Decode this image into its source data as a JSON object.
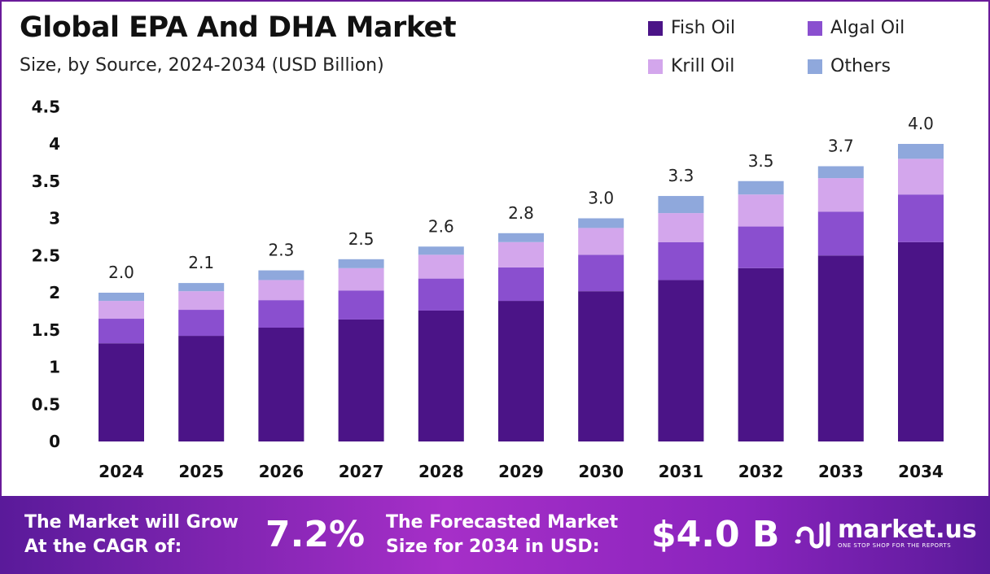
{
  "chart_data": {
    "type": "bar",
    "stacked": true,
    "title": "Global EPA And DHA Market",
    "subtitle": "Size, by Source, 2024-2034 (USD Billion)",
    "categories": [
      "2024",
      "2025",
      "2026",
      "2027",
      "2028",
      "2029",
      "2030",
      "2031",
      "2032",
      "2033",
      "2034"
    ],
    "series": [
      {
        "name": "Fish Oil",
        "color": "#4b1487",
        "values": [
          1.32,
          1.42,
          1.53,
          1.64,
          1.76,
          1.89,
          2.02,
          2.17,
          2.33,
          2.5,
          2.68
        ]
      },
      {
        "name": "Algal Oil",
        "color": "#8a4fcf",
        "values": [
          0.33,
          0.35,
          0.37,
          0.39,
          0.43,
          0.45,
          0.49,
          0.51,
          0.56,
          0.59,
          0.64
        ]
      },
      {
        "name": "Krill Oil",
        "color": "#d3a6ec",
        "values": [
          0.24,
          0.25,
          0.27,
          0.3,
          0.32,
          0.34,
          0.36,
          0.39,
          0.43,
          0.45,
          0.48
        ]
      },
      {
        "name": "Others",
        "color": "#8fa8dc",
        "values": [
          0.11,
          0.11,
          0.13,
          0.12,
          0.11,
          0.12,
          0.13,
          0.23,
          0.18,
          0.16,
          0.2
        ]
      }
    ],
    "totals_labels": [
      "2.0",
      "2.1",
      "2.3",
      "2.5",
      "2.6",
      "2.8",
      "3.0",
      "3.3",
      "3.5",
      "3.7",
      "4.0"
    ],
    "yticks": [
      "0",
      "0.5",
      "1",
      "1.5",
      "2",
      "2.5",
      "3",
      "3.5",
      "4",
      "4.5"
    ],
    "ylim": [
      0,
      4.5
    ],
    "grid": false,
    "legend_position": "top-right"
  },
  "banner": {
    "cagr_text_1": "The Market will Grow",
    "cagr_text_2": "At the CAGR of:",
    "cagr_value": "7.2%",
    "forecast_text_1": "The Forecasted Market",
    "forecast_text_2": "Size for 2034 in USD:",
    "forecast_value": "$4.0 B",
    "logo_name": "market.us",
    "logo_tagline": "ONE STOP SHOP FOR THE REPORTS"
  }
}
